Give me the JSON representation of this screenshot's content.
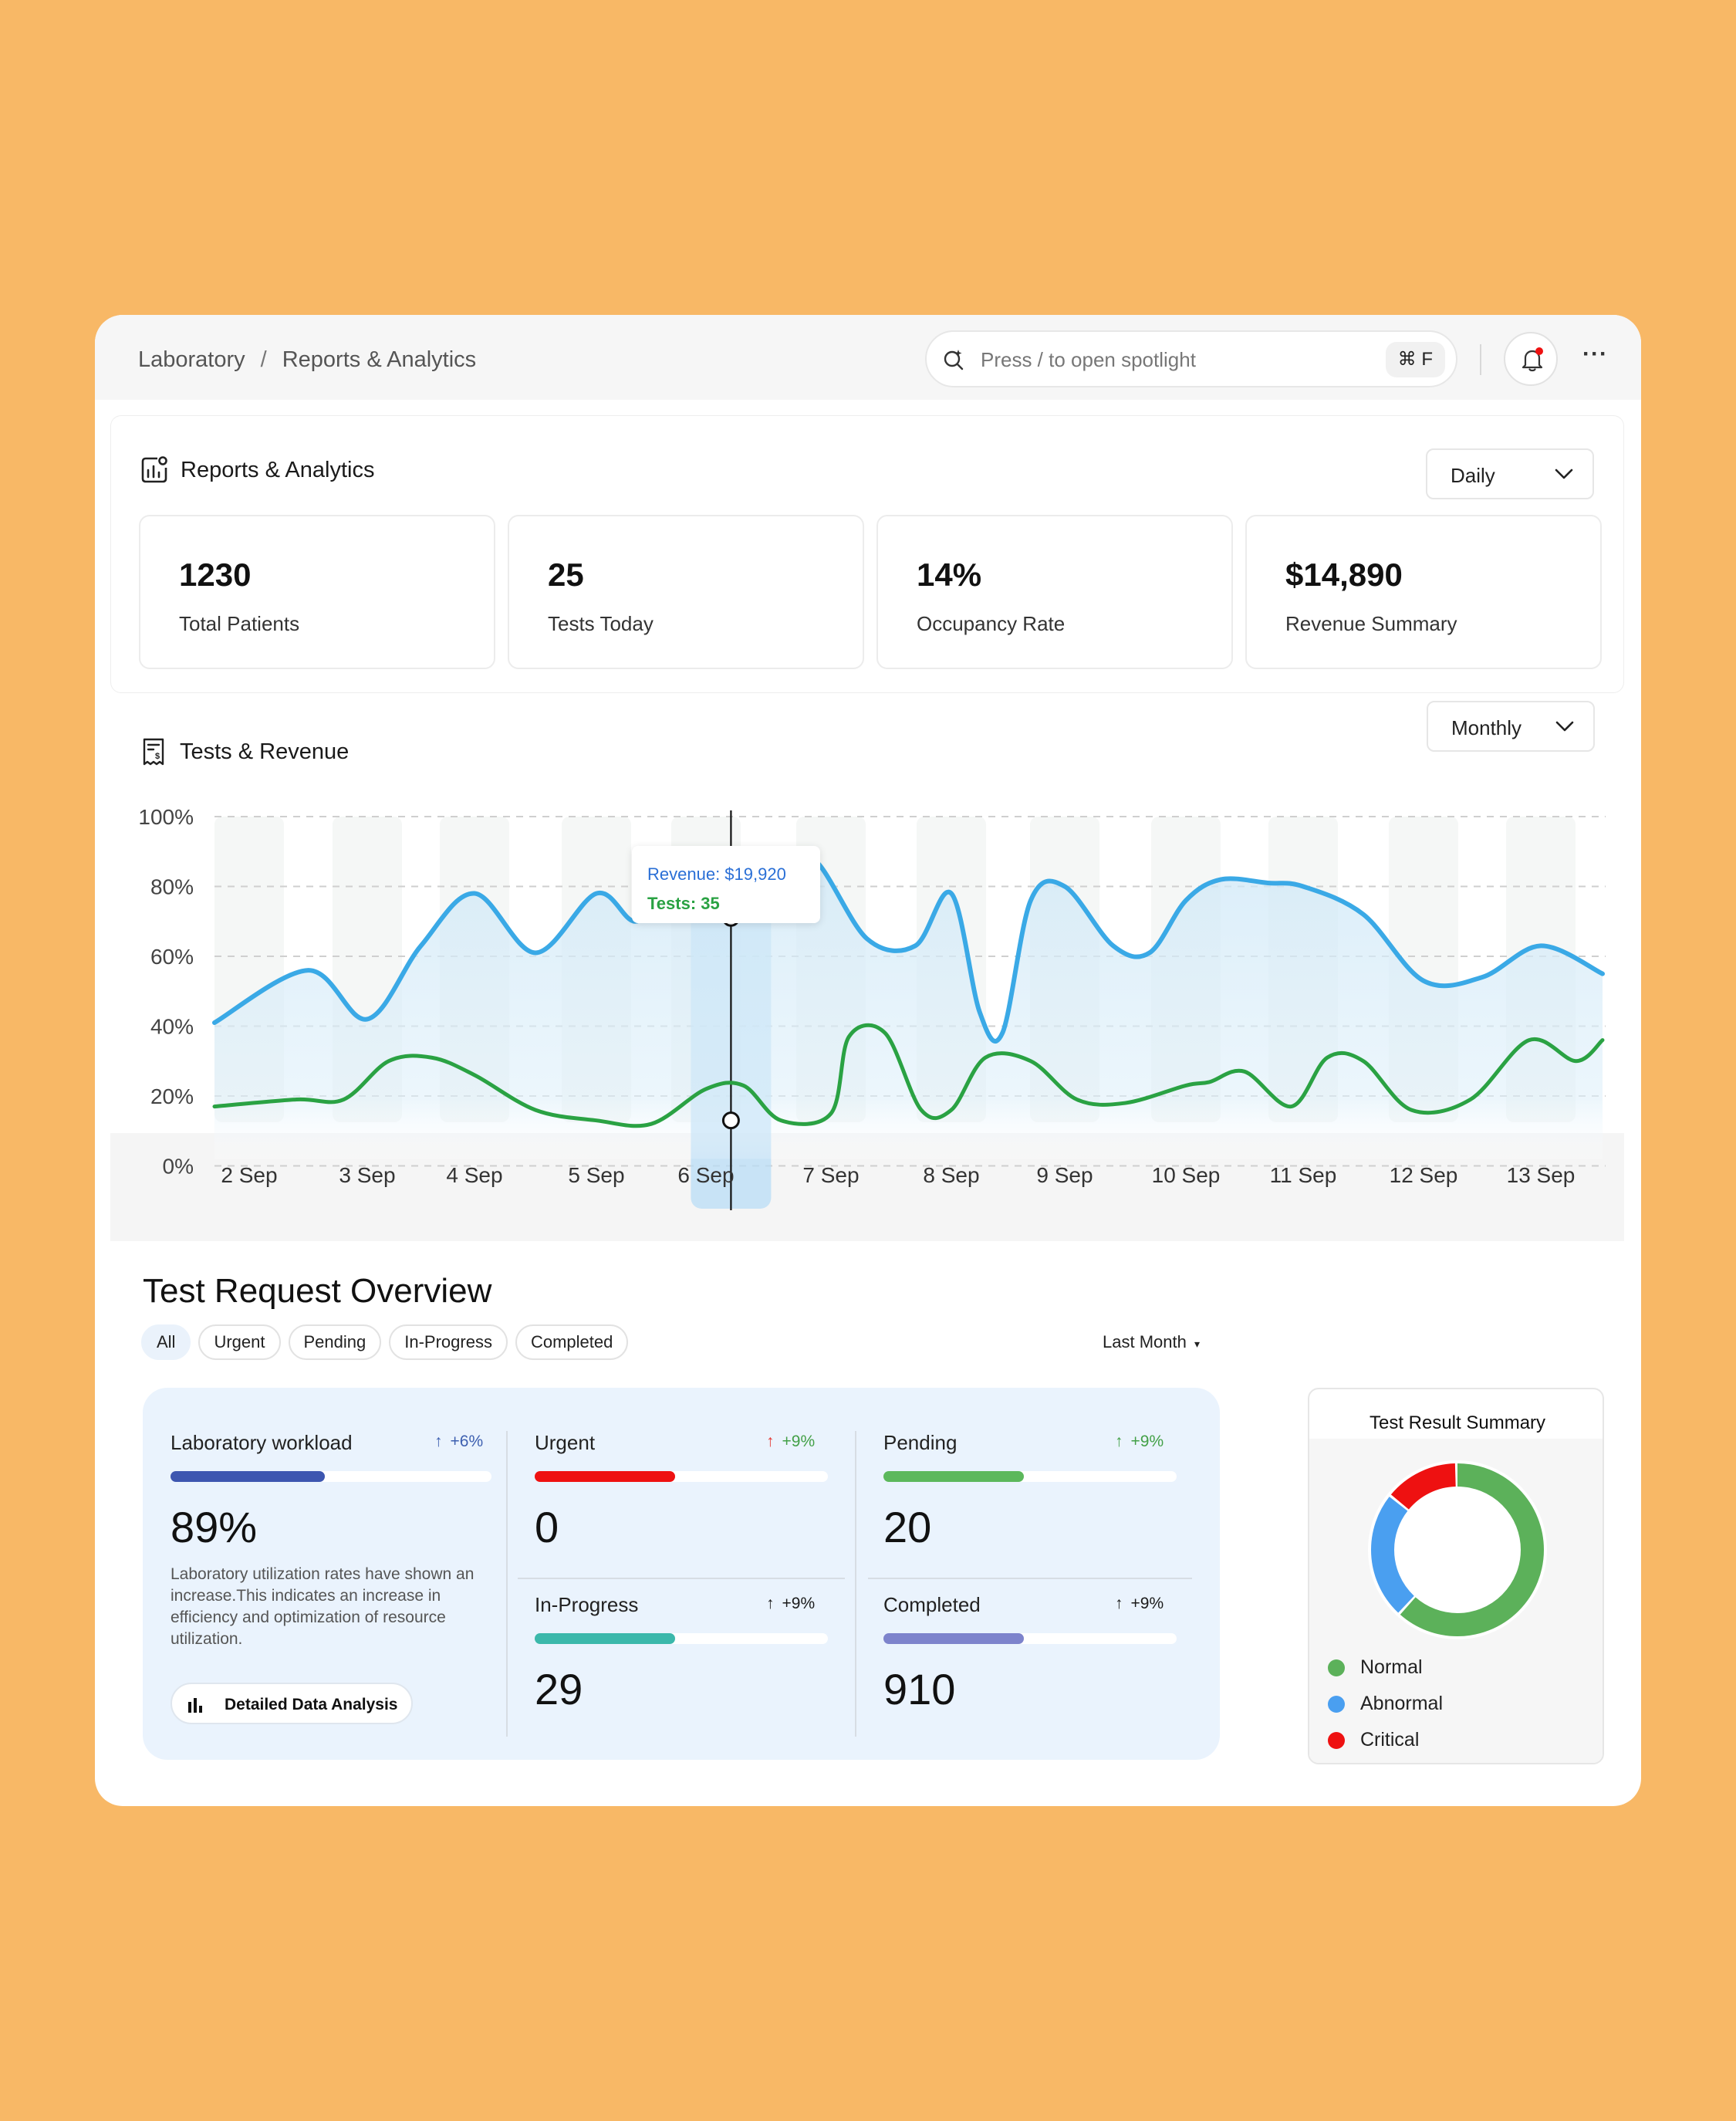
{
  "breadcrumb": {
    "root": "Laboratory",
    "separator": "/",
    "current": "Reports & Analytics"
  },
  "search": {
    "placeholder": "Press / to open spotlight",
    "shortcut": "⌘ F"
  },
  "more_label": "···",
  "reports": {
    "title": "Reports & Analytics",
    "period": "Daily",
    "stats": [
      {
        "value": "1230",
        "label": "Total Patients"
      },
      {
        "value": "25",
        "label": "Tests Today"
      },
      {
        "value": "14%",
        "label": "Occupancy Rate"
      },
      {
        "value": "$14,890",
        "label": "Revenue Summary"
      }
    ]
  },
  "tests_revenue": {
    "title": "Tests & Revenue",
    "period": "Monthly",
    "tooltip": {
      "revenue": "Revenue: $19,920",
      "tests": "Tests: 35"
    }
  },
  "chart_data": {
    "type": "line",
    "yticks": [
      "100%",
      "80%",
      "60%",
      "40%",
      "20%",
      "0%"
    ],
    "ylim": [
      0,
      100
    ],
    "categories": [
      "2 Sep",
      "3 Sep",
      "4 Sep",
      "5 Sep",
      "6 Sep",
      "7 Sep",
      "8 Sep",
      "9 Sep",
      "10 Sep",
      "11 Sep",
      "12 Sep",
      "13 Sep"
    ],
    "highlight": "6 Sep",
    "series": [
      {
        "color": "#3aa9e6",
        "points": [
          [
            0,
            41
          ],
          [
            0.5,
            56
          ],
          [
            1,
            42
          ],
          [
            1.5,
            63
          ],
          [
            2,
            78
          ],
          [
            2.5,
            61
          ],
          [
            3,
            78
          ],
          [
            3.35,
            70
          ],
          [
            3.65,
            77
          ],
          [
            4,
            72
          ],
          [
            4.3,
            71
          ],
          [
            4.6,
            76
          ],
          [
            4.85,
            88
          ],
          [
            5.3,
            65
          ],
          [
            5.7,
            63
          ],
          [
            6,
            78
          ],
          [
            6.25,
            44
          ],
          [
            6.45,
            38
          ],
          [
            6.7,
            76
          ],
          [
            7,
            80
          ],
          [
            7.4,
            63
          ],
          [
            7.7,
            61
          ],
          [
            8,
            76
          ],
          [
            8.3,
            82
          ],
          [
            8.7,
            81
          ],
          [
            9,
            80
          ],
          [
            9.5,
            72
          ],
          [
            10,
            53
          ],
          [
            10.5,
            54
          ],
          [
            11,
            63
          ],
          [
            11.5,
            55
          ]
        ]
      },
      {
        "color": "#2aa243",
        "points": [
          [
            0,
            17
          ],
          [
            0.4,
            19
          ],
          [
            0.8,
            19
          ],
          [
            1.2,
            30
          ],
          [
            1.6,
            31
          ],
          [
            2,
            26
          ],
          [
            2.5,
            16
          ],
          [
            3,
            13
          ],
          [
            3.5,
            12
          ],
          [
            4,
            22
          ],
          [
            4.3,
            23
          ],
          [
            4.6,
            13
          ],
          [
            5,
            15
          ],
          [
            5.15,
            37
          ],
          [
            5.45,
            38
          ],
          [
            5.75,
            16
          ],
          [
            6,
            16
          ],
          [
            6.3,
            31
          ],
          [
            6.7,
            30
          ],
          [
            7.1,
            19
          ],
          [
            7.5,
            18
          ],
          [
            8,
            23
          ],
          [
            8.2,
            24
          ],
          [
            8.5,
            27
          ],
          [
            8.9,
            17
          ],
          [
            9.2,
            31
          ],
          [
            9.5,
            30
          ],
          [
            9.9,
            16
          ],
          [
            10.4,
            19
          ],
          [
            10.9,
            36
          ],
          [
            11.3,
            30
          ],
          [
            11.5,
            36
          ]
        ]
      }
    ],
    "markers": [
      {
        "x": 4.2,
        "y": 71
      },
      {
        "x": 4.2,
        "y": 13
      }
    ]
  },
  "overview": {
    "title": "Test Request Overview",
    "filters": [
      "All",
      "Urgent",
      "Pending",
      "In-Progress",
      "Completed"
    ],
    "range": "Last Month",
    "workload": {
      "title": "Laboratory workload",
      "delta": "+6%",
      "progress": 0.48,
      "value": "89%",
      "description": "Laboratory utilization rates have shown an increase.This indicates an increase in efficiency and optimization of resource utilization.",
      "button": "Detailed Data Analysis"
    },
    "metrics": [
      {
        "title": "Urgent",
        "delta": "+9%",
        "delta_color": "#e53935",
        "arrow": "↑",
        "bar_color": "#ee1111",
        "progress": 0.48,
        "value": "0"
      },
      {
        "title": "Pending",
        "delta": "+9%",
        "delta_color": "#43a047",
        "arrow": "↑",
        "bar_color": "#5cb85c",
        "progress": 0.48,
        "value": "20"
      },
      {
        "title": "In-Progress",
        "delta": "+9%",
        "delta_color": "#43a047",
        "arrow": "↑",
        "bar_color": "#3bb8ab",
        "progress": 0.48,
        "value": "29"
      },
      {
        "title": "Completed",
        "delta": "+9%",
        "delta_color": "#43a047",
        "arrow": "↑",
        "bar_color": "#7d83cc",
        "progress": 0.48,
        "value": "910"
      }
    ]
  },
  "summary": {
    "title": "Test Result Summary",
    "donut": [
      {
        "label": "Normal",
        "value": 62,
        "color": "#5cb15a"
      },
      {
        "label": "Abnormal",
        "value": 24,
        "color": "#4a9ff0"
      },
      {
        "label": "Critical",
        "value": 14,
        "color": "#ee1111"
      }
    ]
  }
}
